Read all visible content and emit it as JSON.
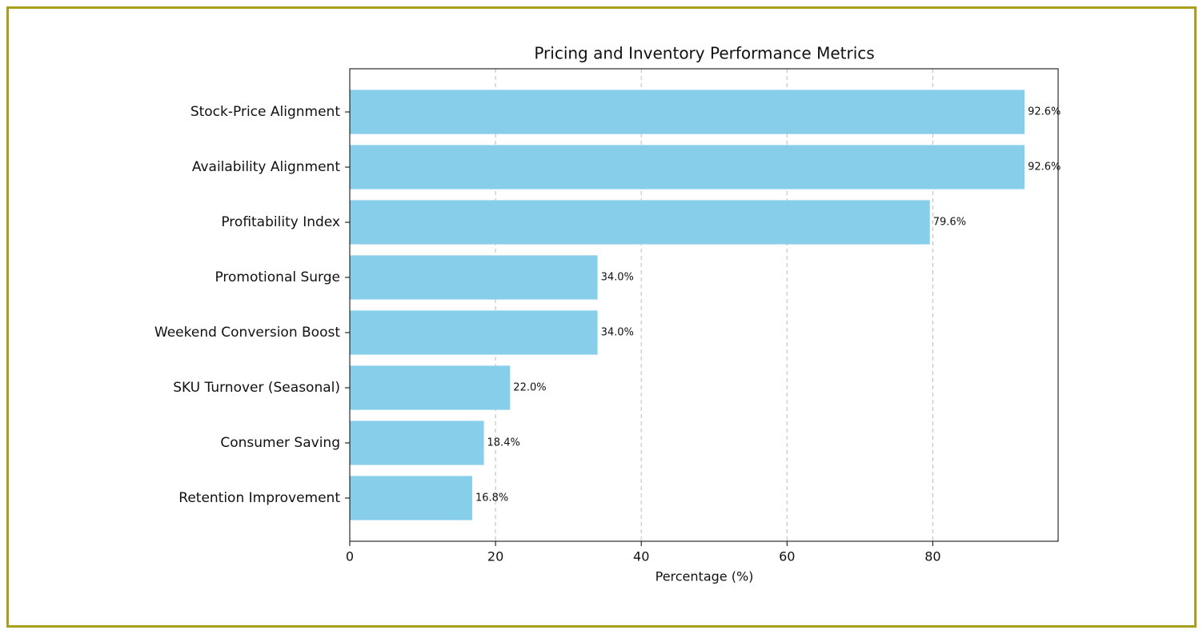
{
  "chart_data": {
    "type": "barh",
    "title": "Pricing and Inventory Performance Metrics",
    "x_label": "Percentage (%)",
    "categories": [
      "Stock-Price Alignment",
      "Availability Alignment",
      "Profitability Index",
      "Promotional Surge",
      "Weekend Conversion Boost",
      "SKU Turnover (Seasonal)",
      "Consumer Saving",
      "Retention Improvement"
    ],
    "values": [
      92.6,
      92.6,
      79.6,
      34.0,
      34.0,
      22.0,
      18.4,
      16.8
    ],
    "value_labels": [
      "92.6%",
      "92.6%",
      "79.6%",
      "34.0%",
      "34.0%",
      "22.0%",
      "18.4%",
      "16.8%"
    ],
    "color": "#87ceeb",
    "xlim": [
      0,
      97.2
    ],
    "xticks": [
      0,
      20,
      40,
      60,
      80
    ],
    "grid": true
  }
}
